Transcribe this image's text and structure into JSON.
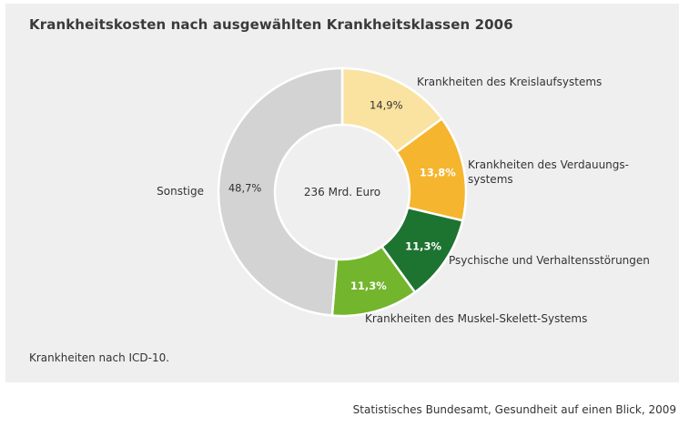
{
  "title": "Krankheitskosten nach ausgewählten Krankheitsklassen 2006",
  "footnote": "Krankheiten nach ICD-10.",
  "source": "Statistisches Bundesamt, Gesundheit auf einen Blick, 2009",
  "chart_data": {
    "type": "pie",
    "donut": true,
    "center_label": "236 Mrd. Euro",
    "slices": [
      {
        "label": "Krankheiten des Kreislaufsystems",
        "label_lines": [
          "Krankheiten des Kreislaufsystems"
        ],
        "value": 14.9,
        "value_label": "14,9%",
        "color": "#fae2a0",
        "value_text_color": "#333333"
      },
      {
        "label": "Krankheiten des Verdauungssystems",
        "label_lines": [
          "Krankheiten des Verdauungs-",
          "systems"
        ],
        "value": 13.8,
        "value_label": "13,8%",
        "color": "#f5b52e",
        "value_text_color": "#ffffff"
      },
      {
        "label": "Psychische und Verhaltensstörungen",
        "label_lines": [
          "Psychische und Verhaltensstörungen"
        ],
        "value": 11.3,
        "value_label": "11,3%",
        "color": "#1d7330",
        "value_text_color": "#ffffff"
      },
      {
        "label": "Krankheiten des Muskel-Skelett-Systems",
        "label_lines": [
          "Krankheiten des Muskel-Skelett-Systems"
        ],
        "value": 11.3,
        "value_label": "11,3%",
        "color": "#73b52c",
        "value_text_color": "#ffffff"
      },
      {
        "label": "Sonstige",
        "label_lines": [
          "Sonstige"
        ],
        "value": 48.7,
        "value_label": "48,7%",
        "color": "#d3d3d3",
        "value_text_color": "#333333"
      }
    ]
  }
}
